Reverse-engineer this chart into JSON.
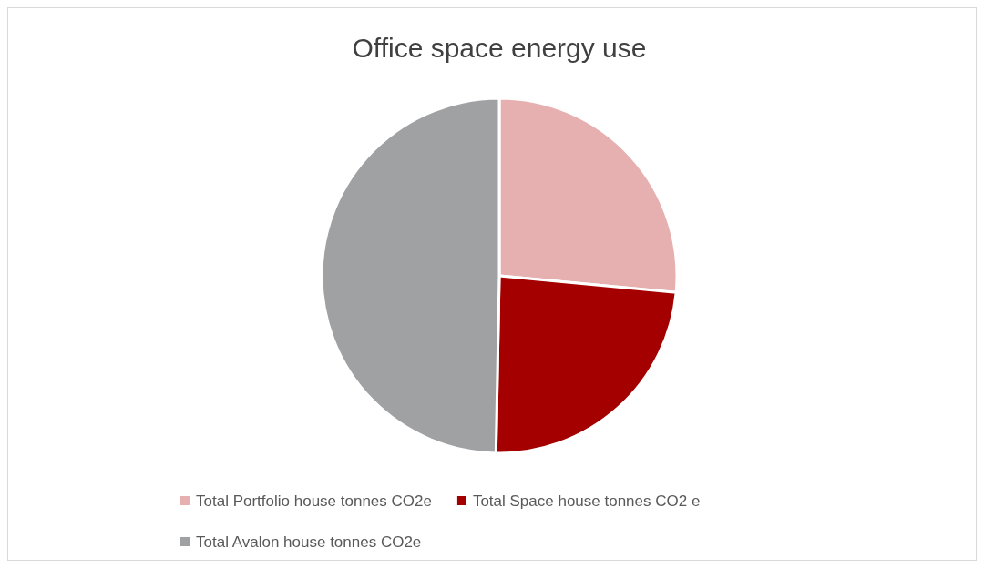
{
  "chart_data": {
    "type": "pie",
    "title": "Office space energy use",
    "categories": [
      "Total Portfolio house tonnes CO2e",
      "Total Space house tonnes CO2 e",
      "Total Avalon house tonnes CO2e"
    ],
    "values": [
      26.5,
      23.8,
      49.7
    ],
    "colors": [
      "#e6b0b1",
      "#a50000",
      "#a0a1a3"
    ],
    "legend": "bottom"
  }
}
